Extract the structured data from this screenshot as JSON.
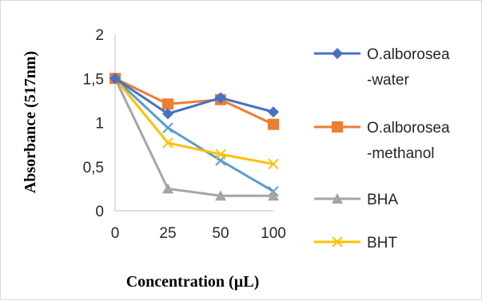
{
  "chart_data": {
    "type": "line",
    "categories": [
      "0",
      "25",
      "50",
      "100"
    ],
    "xlabel": "Concentration (µL)",
    "ylabel": "Absorbance (517nm)",
    "ylim": [
      0,
      2
    ],
    "y_ticks": [
      "0",
      "0,5",
      "1",
      "1,5",
      "2"
    ],
    "grid": false,
    "legend_position": "right",
    "series": [
      {
        "name_lines": [
          "O.alborosea",
          "-water"
        ],
        "color": "#4472C4",
        "marker": "diamond",
        "values": [
          1.5,
          1.1,
          1.28,
          1.12
        ]
      },
      {
        "name_lines": [
          "O.alborosea",
          "-methanol"
        ],
        "color": "#ED7D31",
        "marker": "square",
        "values": [
          1.5,
          1.21,
          1.26,
          0.98
        ]
      },
      {
        "name_lines": [
          "BHA"
        ],
        "color": "#A5A5A5",
        "marker": "triangle",
        "values": [
          1.5,
          0.25,
          0.17,
          0.17
        ]
      },
      {
        "name_lines": [
          "BHT"
        ],
        "color": "#FFC000",
        "marker": "x",
        "values": [
          1.5,
          0.77,
          0.64,
          0.53
        ]
      },
      {
        "name_lines": [],
        "color": "#5B9BD5",
        "marker": "x",
        "values": [
          1.5,
          0.94,
          0.57,
          0.22
        ]
      }
    ]
  }
}
